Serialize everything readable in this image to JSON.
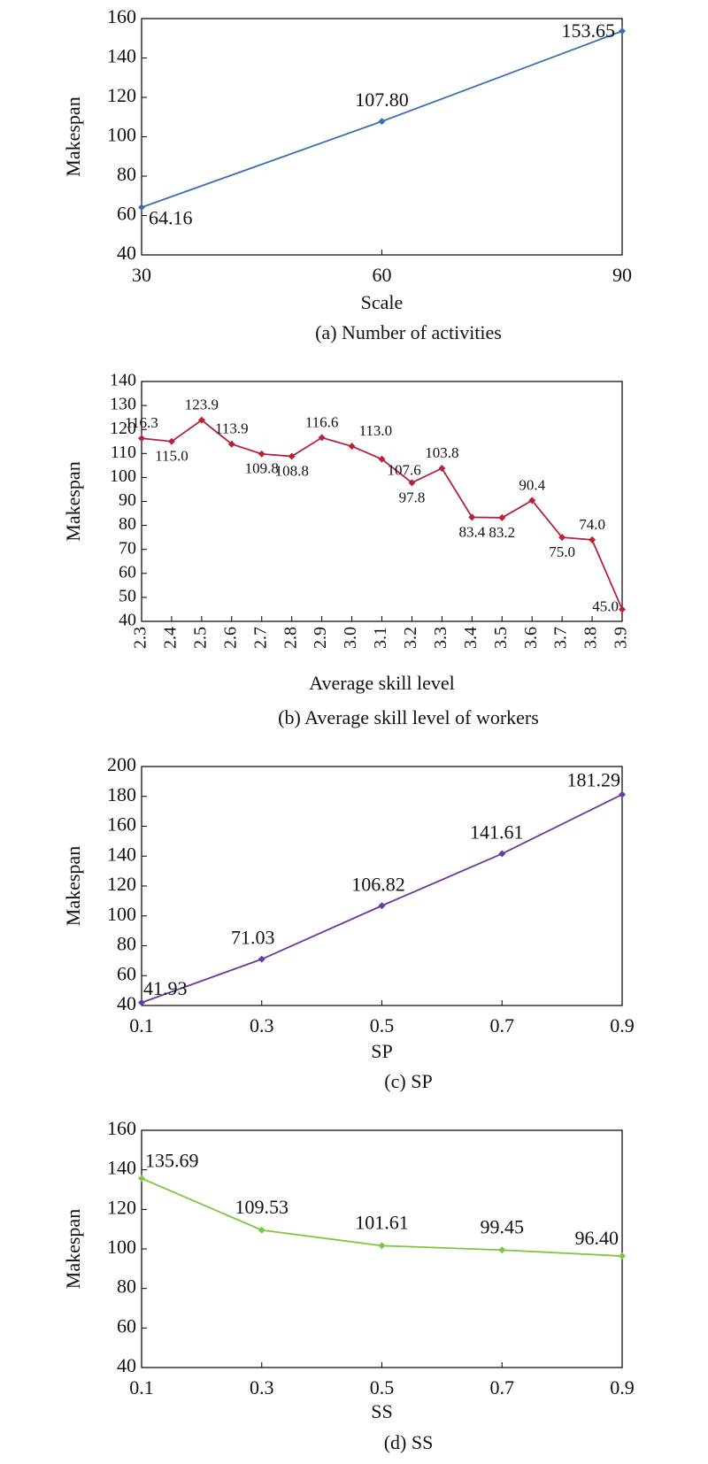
{
  "chart_data": [
    {
      "type": "line",
      "x": [
        30,
        60,
        90
      ],
      "values": [
        64.16,
        107.8,
        153.65
      ],
      "value_labels": [
        "64.16",
        "107.80",
        "153.65"
      ],
      "color": "#3a6fb5",
      "xlim": [
        30,
        90
      ],
      "xticks": [
        30,
        60,
        90
      ],
      "ylim": [
        40,
        160
      ],
      "yticks": [
        40,
        60,
        80,
        100,
        120,
        140,
        160
      ],
      "x_label": "Scale",
      "y_label": "Makespan",
      "caption": "(a) Number of activities"
    },
    {
      "type": "line",
      "categories": [
        "2.3",
        "2.4",
        "2.5",
        "2.6",
        "2.7",
        "2.8",
        "2.9",
        "3.0",
        "3.1",
        "3.2",
        "3.3",
        "3.4",
        "3.5",
        "3.6",
        "3.7",
        "3.8",
        "3.9"
      ],
      "values": [
        116.3,
        115.0,
        123.9,
        113.9,
        109.8,
        108.8,
        116.6,
        113.0,
        107.6,
        97.8,
        103.8,
        83.4,
        83.2,
        90.4,
        75.0,
        74.0,
        45.0
      ],
      "value_labels": [
        "116.3",
        "115.0",
        "123.9",
        "113.9",
        "109.8",
        "108.8",
        "116.6",
        "113.0",
        "107.6",
        "97.8",
        "103.8",
        "83.4",
        "83.2",
        "90.4",
        "75.0",
        "74.0",
        "45.0"
      ],
      "color": "#b5233a",
      "ylim": [
        40,
        140
      ],
      "yticks": [
        40,
        50,
        60,
        70,
        80,
        90,
        100,
        110,
        120,
        130,
        140
      ],
      "x_label": "Average skill level",
      "y_label": "Makespan",
      "caption": "(b) Average skill level of workers"
    },
    {
      "type": "line",
      "x": [
        0.1,
        0.3,
        0.5,
        0.7,
        0.9
      ],
      "values": [
        41.93,
        71.03,
        106.82,
        141.61,
        181.29
      ],
      "color": "#6a3a9e",
      "xlim": [
        0.1,
        0.9
      ],
      "xticks": [
        0.1,
        0.3,
        0.5,
        0.7,
        0.9
      ],
      "ylim": [
        40,
        200
      ],
      "yticks": [
        40,
        60,
        80,
        100,
        120,
        140,
        160,
        180,
        200
      ],
      "x_label": "SP",
      "y_label": "Makespan",
      "caption": "(c) SP"
    },
    {
      "type": "line",
      "x": [
        0.1,
        0.3,
        0.5,
        0.7,
        0.9
      ],
      "values": [
        135.69,
        109.53,
        101.61,
        99.45,
        96.4
      ],
      "value_labels": [
        "135.69",
        "109.53",
        "101.61",
        "99.45",
        "96.40"
      ],
      "color": "#7dc740",
      "xlim": [
        0.1,
        0.9
      ],
      "xticks": [
        0.1,
        0.3,
        0.5,
        0.7,
        0.9
      ],
      "ylim": [
        40,
        160
      ],
      "yticks": [
        40,
        60,
        80,
        100,
        120,
        140,
        160
      ],
      "x_label": "SS",
      "y_label": "Makespan",
      "caption": "(d) SS"
    }
  ]
}
